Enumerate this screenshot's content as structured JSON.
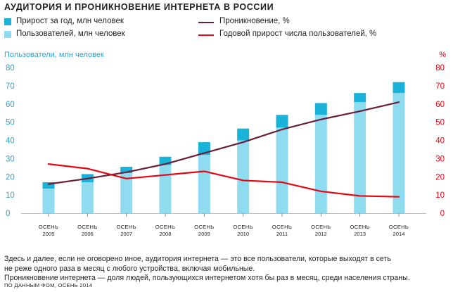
{
  "title": "АУДИТОРИЯ И ПРОНИКНОВЕНИЕ ИНТЕРНЕТА В РОССИИ",
  "legend": {
    "growth": "Прирост за год, млн человек",
    "users": "Пользователей, млн человек",
    "penetration": "Проникновение, %",
    "annual_growth": "Годовой прирост числа пользователей, %"
  },
  "colors": {
    "growth": "#1bb2d9",
    "users": "#8fdcf0",
    "penetration": "#6b1f3a",
    "annual_growth": "#e30613",
    "left_axis": "#2aa6d1",
    "right_axis": "#e30613"
  },
  "notes": [
    "Здесь и далее, если не оговорено иное, аудитория интернета — это все пользователи, которые выходят в сеть",
    "не реже одного раза в месяц с любого устройства, включая мобильные.",
    "Проникновение интернета — доля людей, пользующихся интернетом хотя бы раз в месяц, среди населения страны."
  ],
  "source": "ПО ДАННЫМ ФОМ, ОСЕНЬ 2014",
  "chart_data": {
    "type": "bar",
    "left_axis_label": "Пользователи, млн человек",
    "right_axis_label": "%",
    "ylim": [
      0,
      80
    ],
    "y_ticks": [
      0,
      10,
      20,
      30,
      40,
      50,
      60,
      70,
      80
    ],
    "categories": [
      [
        "ОСЕНЬ",
        "2005"
      ],
      [
        "ОСЕНЬ",
        "2006"
      ],
      [
        "ОСЕНЬ",
        "2007"
      ],
      [
        "ОСЕНЬ",
        "2008"
      ],
      [
        "ОСЕНЬ",
        "2009"
      ],
      [
        "ОСЕНЬ",
        "2010"
      ],
      [
        "ОСЕНЬ",
        "2011"
      ],
      [
        "ОСЕНЬ",
        "2012"
      ],
      [
        "ОСЕНЬ",
        "2013"
      ],
      [
        "ОСЕНЬ",
        "2014"
      ]
    ],
    "series": [
      {
        "name": "Пользователей, млн человек",
        "type": "bar",
        "axis": "left",
        "values": [
          13.5,
          17,
          22,
          26.5,
          32,
          40,
          47,
          54,
          61,
          66
        ]
      },
      {
        "name": "Прирост за год, млн человек",
        "type": "bar-stack",
        "axis": "left",
        "values": [
          3.5,
          4.5,
          3.5,
          4.5,
          7,
          6.5,
          7,
          6.5,
          5,
          6
        ]
      },
      {
        "name": "Проникновение, %",
        "type": "line",
        "axis": "right",
        "values": [
          16,
          19,
          22.5,
          27,
          33,
          39,
          46,
          51.5,
          56,
          61
        ]
      },
      {
        "name": "Годовой прирост числа пользователей, %",
        "type": "line",
        "axis": "right",
        "values": [
          27,
          24.5,
          19,
          21,
          23,
          18,
          17,
          12,
          9.5,
          9
        ]
      }
    ],
    "grid": false
  }
}
